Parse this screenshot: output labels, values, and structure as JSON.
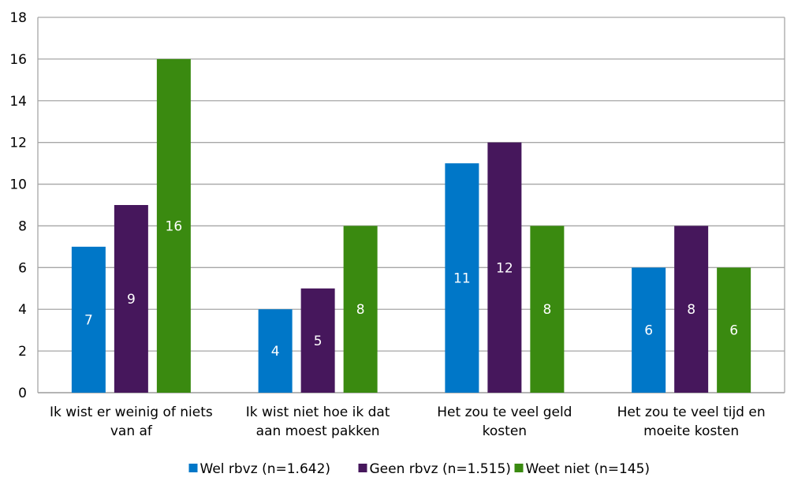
{
  "chart_data": {
    "type": "bar",
    "categories": [
      [
        "Ik wist er weinig of niets",
        "van af"
      ],
      [
        "Ik wist niet hoe ik dat",
        "aan moest pakken"
      ],
      [
        "Het zou te veel geld",
        "kosten"
      ],
      [
        "Het zou te veel tijd en",
        "moeite kosten"
      ]
    ],
    "series": [
      {
        "name": "Wel rbvz (n=1.642)",
        "values": [
          7,
          4,
          11,
          6
        ],
        "color": "#0077C8"
      },
      {
        "name": "Geen rbvz (n=1.515)",
        "values": [
          9,
          5,
          12,
          8
        ],
        "color": "#46175C"
      },
      {
        "name": "Weet niet (n=145)",
        "values": [
          16,
          8,
          8,
          6
        ],
        "color": "#3A8A10"
      }
    ],
    "ylim": [
      0,
      18
    ],
    "yticks": [
      0,
      2,
      4,
      6,
      8,
      10,
      12,
      14,
      16,
      18
    ],
    "grid": true,
    "legend": "bottom"
  }
}
